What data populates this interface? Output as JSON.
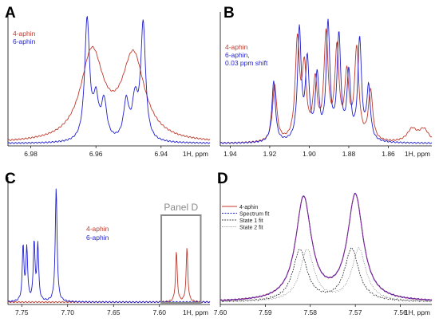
{
  "colors": {
    "red": "#c0392b",
    "blue": "#1f1fd0",
    "purple": "#7a2a9e",
    "box": "#8a8a8a",
    "grey": "#8c8c8c",
    "black": "#333333"
  },
  "chart_data": [
    {
      "type": "line",
      "panel": "A",
      "tick_labels": [
        "6.98",
        "6.96",
        "6.94"
      ],
      "axis_unit": "1H, ppm",
      "xlim": [
        6.987,
        6.925
      ],
      "legend": [
        "4-aphin",
        "6-aphin"
      ],
      "series": [
        {
          "name": "4-aphin",
          "color": "red",
          "peaks": [
            {
              "x": 6.9612,
              "h": 0.7,
              "w": 0.0042
            },
            {
              "x": 6.9485,
              "h": 0.67,
              "w": 0.0042
            }
          ]
        },
        {
          "name": "6-aphin",
          "color": "blue",
          "peaks": [
            {
              "x": 6.9627,
              "h": 0.96,
              "w": 0.0009
            },
            {
              "x": 6.96,
              "h": 0.3,
              "w": 0.001
            },
            {
              "x": 6.9575,
              "h": 0.3,
              "w": 0.001
            },
            {
              "x": 6.9507,
              "h": 0.3,
              "w": 0.001
            },
            {
              "x": 6.948,
              "h": 0.3,
              "w": 0.001
            },
            {
              "x": 6.9455,
              "h": 0.92,
              "w": 0.0009
            }
          ]
        }
      ]
    },
    {
      "type": "line",
      "panel": "B",
      "tick_labels": [
        "1.94",
        "1.92",
        "1.90",
        "1.88",
        "1.86"
      ],
      "axis_unit": "1H, ppm",
      "xlim": [
        1.945,
        1.838
      ],
      "legend": [
        "4-aphin",
        "6-aphin,",
        "0.03 ppm shift"
      ],
      "series": [
        {
          "name": "4-aphin",
          "color": "red",
          "peaks": [
            {
              "x": 1.9175,
              "h": 0.45,
              "w": 0.0013
            },
            {
              "x": 1.906,
              "h": 0.78,
              "w": 0.0013
            },
            {
              "x": 1.9025,
              "h": 0.55,
              "w": 0.0013
            },
            {
              "x": 1.897,
              "h": 0.45,
              "w": 0.0013
            },
            {
              "x": 1.8915,
              "h": 0.82,
              "w": 0.0013
            },
            {
              "x": 1.886,
              "h": 0.7,
              "w": 0.0013
            },
            {
              "x": 1.881,
              "h": 0.5,
              "w": 0.0013
            },
            {
              "x": 1.876,
              "h": 0.72,
              "w": 0.0013
            },
            {
              "x": 1.869,
              "h": 0.4,
              "w": 0.0013
            },
            {
              "x": 1.848,
              "h": 0.1,
              "w": 0.003
            },
            {
              "x": 1.842,
              "h": 0.1,
              "w": 0.003
            }
          ]
        },
        {
          "name": "6-aphin,",
          "color": "blue",
          "peaks": [
            {
              "x": 1.918,
              "h": 0.48,
              "w": 0.0011
            },
            {
              "x": 1.905,
              "h": 0.88,
              "w": 0.0011
            },
            {
              "x": 1.901,
              "h": 0.62,
              "w": 0.0011
            },
            {
              "x": 1.896,
              "h": 0.5,
              "w": 0.0011
            },
            {
              "x": 1.8905,
              "h": 0.92,
              "w": 0.0011
            },
            {
              "x": 1.885,
              "h": 0.82,
              "w": 0.0011
            },
            {
              "x": 1.88,
              "h": 0.52,
              "w": 0.0011
            },
            {
              "x": 1.8745,
              "h": 0.8,
              "w": 0.0011
            },
            {
              "x": 1.87,
              "h": 0.42,
              "w": 0.0011
            }
          ]
        }
      ]
    },
    {
      "type": "line",
      "panel": "C",
      "tick_labels": [
        "7.75",
        "7.70",
        "7.65",
        "7.60"
      ],
      "axis_unit": "1H, ppm",
      "xlim": [
        7.765,
        7.545
      ],
      "legend": [
        "4-aphin",
        "6-aphin"
      ],
      "annotation": "Panel D",
      "series": [
        {
          "name": "4-aphin",
          "color": "red",
          "peaks": [
            {
              "x": 7.5815,
              "h": 0.42,
              "w": 0.0011
            },
            {
              "x": 7.57,
              "h": 0.45,
              "w": 0.0011
            }
          ]
        },
        {
          "name": "6-aphin",
          "color": "blue",
          "peaks": [
            {
              "x": 7.7485,
              "h": 0.46,
              "w": 0.0011
            },
            {
              "x": 7.7445,
              "h": 0.44,
              "w": 0.0011
            },
            {
              "x": 7.7365,
              "h": 0.49,
              "w": 0.0011
            },
            {
              "x": 7.7325,
              "h": 0.47,
              "w": 0.0011
            },
            {
              "x": 7.7125,
              "h": 0.95,
              "w": 0.0012
            }
          ]
        }
      ]
    },
    {
      "type": "line",
      "panel": "D",
      "tick_labels": [
        "7.60",
        "7.59",
        "7.58",
        "7.57",
        "7.56"
      ],
      "axis_unit": "1H, ppm",
      "xlim": [
        7.6,
        7.553
      ],
      "legend": [
        "4-aphin",
        "Spectrum fit",
        "State 1 fit",
        "State 2 fit"
      ],
      "series": [
        {
          "name": "4-aphin",
          "color": "red",
          "peaks": [
            {
              "x": 7.5815,
              "h": 0.86,
              "w": 0.0021
            },
            {
              "x": 7.57,
              "h": 0.88,
              "w": 0.0021
            }
          ]
        },
        {
          "name": "Spectrum fit",
          "color": "blue",
          "peaks": [
            {
              "x": 7.5815,
              "h": 0.86,
              "w": 0.0021
            },
            {
              "x": 7.57,
              "h": 0.88,
              "w": 0.0021
            }
          ]
        },
        {
          "name": "State 1 fit",
          "color": "black",
          "peaks": [
            {
              "x": 7.5823,
              "h": 0.43,
              "w": 0.0019
            },
            {
              "x": 7.5708,
              "h": 0.44,
              "w": 0.0019
            }
          ]
        },
        {
          "name": "State 2 fit",
          "color": "grey",
          "peaks": [
            {
              "x": 7.5807,
              "h": 0.43,
              "w": 0.0019
            },
            {
              "x": 7.5692,
              "h": 0.44,
              "w": 0.0019
            }
          ]
        }
      ]
    }
  ]
}
